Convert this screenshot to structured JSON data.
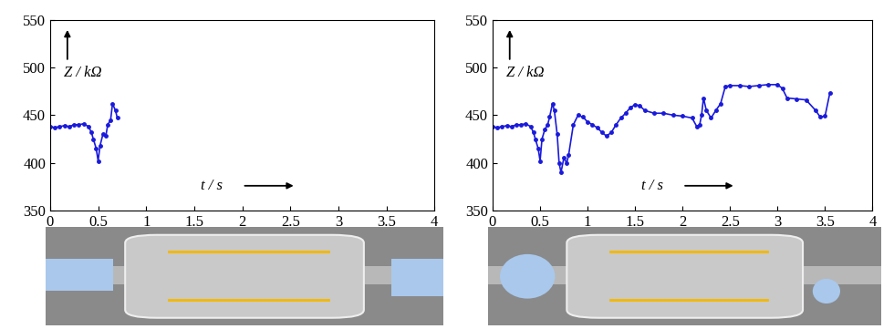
{
  "chart_data": [
    {
      "type": "line",
      "color": "#1a1adc",
      "marker": "o",
      "line_style": "solid",
      "grid": false,
      "annotations": [
        "Z / kΩ",
        "t / s"
      ],
      "x": [
        0,
        0.05,
        0.1,
        0.15,
        0.2,
        0.25,
        0.3,
        0.35,
        0.4,
        0.43,
        0.45,
        0.48,
        0.5,
        0.52,
        0.55,
        0.58,
        0.6,
        0.63,
        0.65,
        0.68,
        0.7
      ],
      "values": [
        438,
        437,
        438,
        439,
        438,
        440,
        440,
        441,
        438,
        432,
        425,
        415,
        402,
        418,
        430,
        428,
        440,
        445,
        462,
        455,
        447
      ],
      "xlim": [
        0,
        4
      ],
      "xticks": [
        0,
        0.5,
        1,
        1.5,
        2,
        2.5,
        3,
        3.5,
        4
      ],
      "ylim": [
        350,
        550
      ],
      "yticks": [
        350,
        400,
        450,
        500,
        550
      ]
    },
    {
      "type": "line",
      "color": "#1a1adc",
      "marker": "o",
      "line_style": "solid",
      "grid": false,
      "annotations": [
        "Z / kΩ",
        "t / s"
      ],
      "x": [
        0,
        0.05,
        0.1,
        0.15,
        0.2,
        0.25,
        0.3,
        0.35,
        0.4,
        0.43,
        0.45,
        0.48,
        0.5,
        0.52,
        0.55,
        0.58,
        0.6,
        0.63,
        0.65,
        0.68,
        0.7,
        0.72,
        0.75,
        0.78,
        0.8,
        0.85,
        0.9,
        0.95,
        1,
        1.05,
        1.1,
        1.15,
        1.2,
        1.25,
        1.3,
        1.35,
        1.4,
        1.45,
        1.5,
        1.55,
        1.6,
        1.7,
        1.8,
        1.9,
        2,
        2.1,
        2.15,
        2.18,
        2.2,
        2.22,
        2.25,
        2.3,
        2.35,
        2.4,
        2.45,
        2.5,
        2.6,
        2.7,
        2.8,
        2.9,
        3,
        3.05,
        3.1,
        3.2,
        3.3,
        3.4,
        3.45,
        3.5,
        3.55
      ],
      "values": [
        438,
        437,
        438,
        439,
        438,
        440,
        440,
        441,
        438,
        432,
        425,
        415,
        402,
        425,
        435,
        440,
        448,
        462,
        455,
        430,
        400,
        390,
        405,
        400,
        408,
        440,
        450,
        448,
        443,
        440,
        437,
        432,
        428,
        432,
        440,
        447,
        452,
        458,
        461,
        460,
        455,
        452,
        452,
        450,
        449,
        447,
        438,
        440,
        450,
        468,
        455,
        447,
        455,
        462,
        480,
        481,
        481,
        480,
        481,
        482,
        482,
        478,
        468,
        467,
        466,
        455,
        448,
        449,
        473
      ],
      "xlim": [
        0,
        4
      ],
      "xticks": [
        0,
        0.5,
        1,
        1.5,
        2,
        2.5,
        3,
        3.5,
        4
      ],
      "ylim": [
        350,
        550
      ],
      "yticks": [
        350,
        400,
        450,
        500,
        550
      ]
    }
  ]
}
